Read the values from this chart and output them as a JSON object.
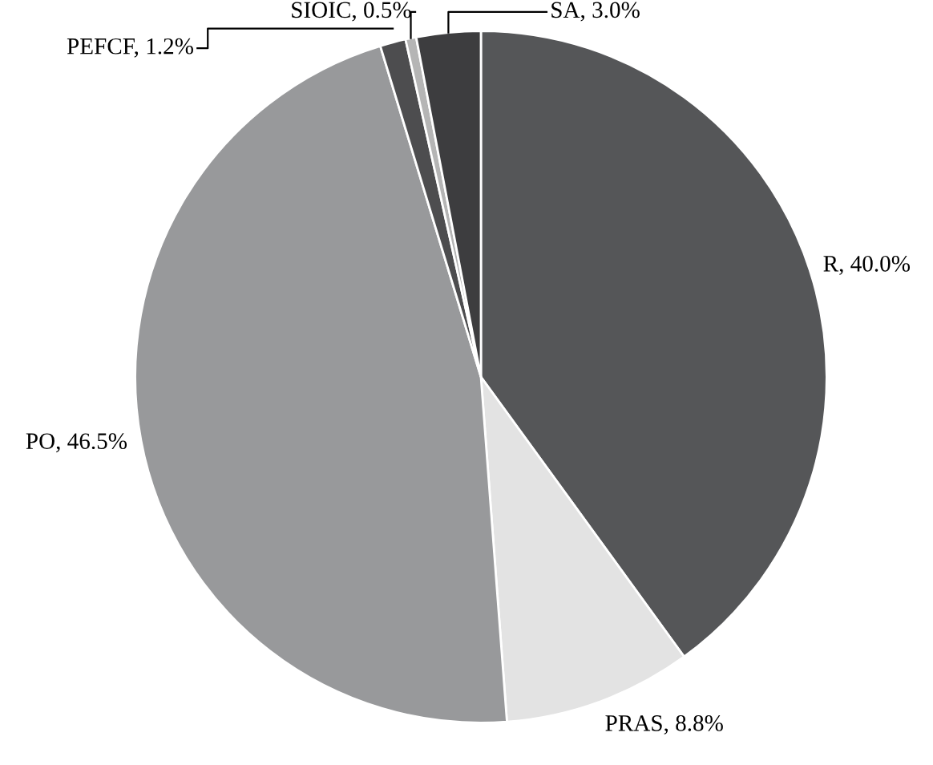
{
  "chart_data": {
    "type": "pie",
    "categories": [
      "R",
      "PRAS",
      "PO",
      "PEFCF",
      "SIOIC",
      "SA"
    ],
    "values": [
      40.0,
      8.8,
      46.5,
      1.2,
      0.5,
      3.0
    ],
    "colors": [
      "#555658",
      "#e3e3e3",
      "#98999b",
      "#4d4d4f",
      "#b5b5b5",
      "#3d3d3f"
    ],
    "value_labels": [
      "40.0%",
      "8.8%",
      "46.5%",
      "1.2%",
      "0.5%",
      "3.0%"
    ],
    "legend": false
  }
}
